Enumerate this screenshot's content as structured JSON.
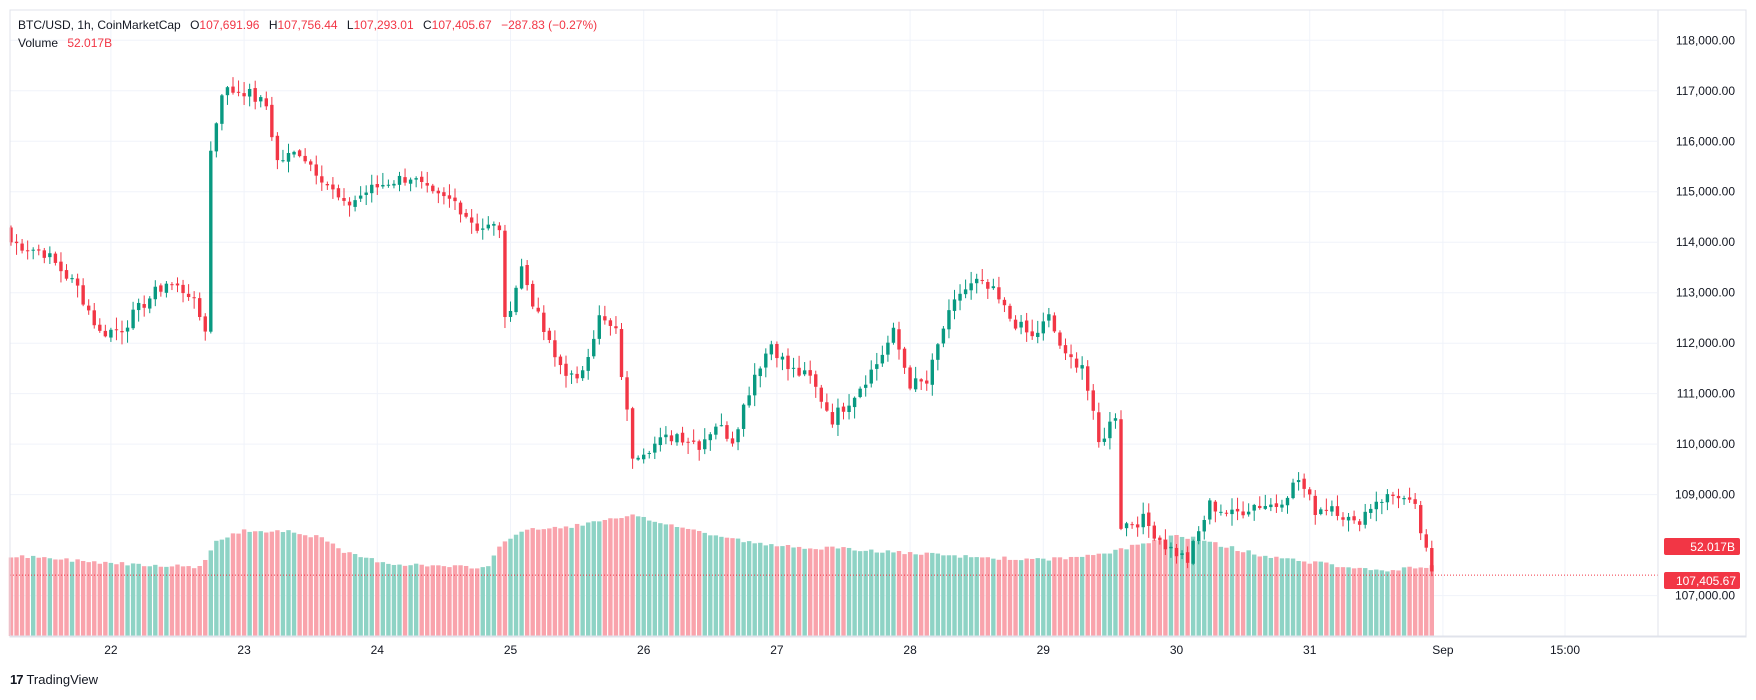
{
  "legend": {
    "symbol": "BTC/USD, 1h, CoinMarketCap",
    "o_label": "O",
    "o_value": "107,691.96",
    "h_label": "H",
    "h_value": "107,756.44",
    "l_label": "L",
    "l_value": "107,293.01",
    "c_label": "C",
    "c_value": "107,405.67",
    "change": "−287.83 (−0.27%)",
    "volume_label": "Volume",
    "volume_value": "52.017B"
  },
  "tags": {
    "volume": "52.017B",
    "price": "107,405.67"
  },
  "footer": {
    "logo": "17",
    "brand": "TradingView"
  },
  "colors": {
    "up": "#089981",
    "down": "#F23645",
    "vol_up": "#8ED3C5",
    "vol_down": "#F9A3AC",
    "grid": "#F0F3FA"
  },
  "chart_data": {
    "type": "candlestick",
    "title": "BTC/USD, 1h, CoinMarketCap",
    "ylim": [
      106200,
      118600
    ],
    "y_ticks": [
      "118,000.00",
      "117,000.00",
      "116,000.00",
      "115,000.00",
      "114,000.00",
      "113,000.00",
      "112,000.00",
      "111,000.00",
      "110,000.00",
      "109,000.00",
      "107,000.00"
    ],
    "x_ticks": [
      "22",
      "23",
      "24",
      "25",
      "26",
      "27",
      "28",
      "29",
      "30",
      "31",
      "Sep",
      "15:00"
    ],
    "close_anchors": [
      [
        0,
        114000
      ],
      [
        6,
        113800
      ],
      [
        12,
        113100
      ],
      [
        16,
        112200
      ],
      [
        20,
        112300
      ],
      [
        24,
        112800
      ],
      [
        28,
        113200
      ],
      [
        32,
        113000
      ],
      [
        35,
        112300
      ],
      [
        36,
        115800
      ],
      [
        38,
        117000
      ],
      [
        42,
        117000
      ],
      [
        46,
        116700
      ],
      [
        48,
        115600
      ],
      [
        52,
        115800
      ],
      [
        56,
        115300
      ],
      [
        60,
        114700
      ],
      [
        64,
        115000
      ],
      [
        68,
        115200
      ],
      [
        72,
        115300
      ],
      [
        76,
        114900
      ],
      [
        80,
        114800
      ],
      [
        84,
        114300
      ],
      [
        88,
        114300
      ],
      [
        89,
        112400
      ],
      [
        92,
        113500
      ],
      [
        95,
        112500
      ],
      [
        98,
        111700
      ],
      [
        102,
        111200
      ],
      [
        106,
        112500
      ],
      [
        109,
        112200
      ],
      [
        112,
        109800
      ],
      [
        116,
        110000
      ],
      [
        120,
        110200
      ],
      [
        124,
        110000
      ],
      [
        127,
        110400
      ],
      [
        130,
        110100
      ],
      [
        134,
        111400
      ],
      [
        137,
        112000
      ],
      [
        140,
        111500
      ],
      [
        144,
        111300
      ],
      [
        148,
        110500
      ],
      [
        152,
        111000
      ],
      [
        156,
        111600
      ],
      [
        159,
        112200
      ],
      [
        162,
        111200
      ],
      [
        165,
        111200
      ],
      [
        168,
        112300
      ],
      [
        171,
        113000
      ],
      [
        174,
        113200
      ],
      [
        177,
        113000
      ],
      [
        180,
        112500
      ],
      [
        184,
        112100
      ],
      [
        187,
        112500
      ],
      [
        190,
        111700
      ],
      [
        193,
        111600
      ],
      [
        196,
        110000
      ],
      [
        199,
        110600
      ],
      [
        200,
        108400
      ],
      [
        204,
        108500
      ],
      [
        208,
        108000
      ],
      [
        212,
        107700
      ],
      [
        216,
        108800
      ],
      [
        220,
        108600
      ],
      [
        224,
        108800
      ],
      [
        228,
        108800
      ],
      [
        232,
        109300
      ],
      [
        235,
        108700
      ],
      [
        238,
        108800
      ],
      [
        242,
        108400
      ],
      [
        246,
        108900
      ],
      [
        250,
        109000
      ],
      [
        253,
        108700
      ],
      [
        256,
        107400
      ]
    ],
    "volume_anchors": [
      [
        0,
        0.22
      ],
      [
        20,
        0.2
      ],
      [
        34,
        0.19
      ],
      [
        37,
        0.26
      ],
      [
        42,
        0.29
      ],
      [
        50,
        0.29
      ],
      [
        56,
        0.27
      ],
      [
        60,
        0.23
      ],
      [
        68,
        0.2
      ],
      [
        80,
        0.19
      ],
      [
        86,
        0.19
      ],
      [
        88,
        0.25
      ],
      [
        92,
        0.29
      ],
      [
        100,
        0.3
      ],
      [
        108,
        0.32
      ],
      [
        112,
        0.33
      ],
      [
        118,
        0.31
      ],
      [
        126,
        0.28
      ],
      [
        136,
        0.25
      ],
      [
        150,
        0.24
      ],
      [
        160,
        0.23
      ],
      [
        170,
        0.22
      ],
      [
        185,
        0.21
      ],
      [
        195,
        0.22
      ],
      [
        203,
        0.25
      ],
      [
        210,
        0.28
      ],
      [
        218,
        0.25
      ],
      [
        226,
        0.22
      ],
      [
        236,
        0.2
      ],
      [
        246,
        0.18
      ],
      [
        256,
        0.19
      ]
    ]
  }
}
